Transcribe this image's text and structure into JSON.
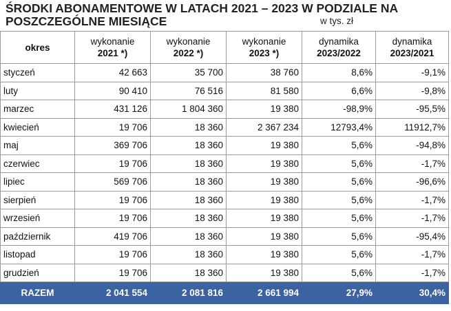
{
  "title": {
    "line1": "ŚRODKI ABONAMENTOWE W LATACH 2021 – 2023 W PODZIALE NA",
    "line2": "POSZCZEGÓLNE MIESIĄCE",
    "unit": "w tys. zł"
  },
  "headers": [
    {
      "top": "",
      "bottom": "okres"
    },
    {
      "top": "wykonanie",
      "bottom": "2021 *)"
    },
    {
      "top": "wykonanie",
      "bottom": "2022 *)"
    },
    {
      "top": "wykonanie",
      "bottom": "2023 *)"
    },
    {
      "top": "dynamika",
      "bottom": "2023/2022"
    },
    {
      "top": "dynamika",
      "bottom": "2023/2021"
    }
  ],
  "rows": [
    [
      "styczeń",
      "42 663",
      "35 700",
      "38 760",
      "8,6%",
      "-9,1%"
    ],
    [
      "luty",
      "90 410",
      "76 516",
      "81 580",
      "6,6%",
      "-9,8%"
    ],
    [
      "marzec",
      "431 126",
      "1 804 360",
      "19 380",
      "-98,9%",
      "-95,5%"
    ],
    [
      "kwiecień",
      "19 706",
      "18 360",
      "2 367 234",
      "12793,4%",
      "11912,7%"
    ],
    [
      "maj",
      "369 706",
      "18 360",
      "19 380",
      "5,6%",
      "-94,8%"
    ],
    [
      "czerwiec",
      "19 706",
      "18 360",
      "19 380",
      "5,6%",
      "-1,7%"
    ],
    [
      "lipiec",
      "569 706",
      "18 360",
      "19 380",
      "5,6%",
      "-96,6%"
    ],
    [
      "sierpień",
      "19 706",
      "18 360",
      "19 380",
      "5,6%",
      "-1,7%"
    ],
    [
      "wrzesień",
      "19 706",
      "18 360",
      "19 380",
      "5,6%",
      "-1,7%"
    ],
    [
      "październik",
      "419 706",
      "18 360",
      "19 380",
      "5,6%",
      "-95,4%"
    ],
    [
      "listopad",
      "19 706",
      "18 360",
      "19 380",
      "5,6%",
      "-1,7%"
    ],
    [
      "grudzień",
      "19 706",
      "18 360",
      "19 380",
      "5,6%",
      "-1,7%"
    ]
  ],
  "total": [
    "RAZEM",
    "2 041 554",
    "2 081 816",
    "2 661 994",
    "27,9%",
    "30,4%"
  ],
  "colors": {
    "total_bg": "#3b62a1",
    "total_text": "#ffffff",
    "border": "#9a9a9a"
  }
}
